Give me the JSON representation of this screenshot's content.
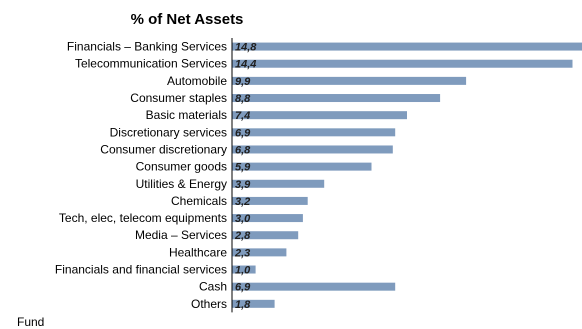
{
  "chart_data": {
    "type": "bar",
    "orientation": "horizontal",
    "title": "% of Net Assets",
    "categories": [
      "Financials – Banking Services",
      "Telecommunication Services",
      "Automobile",
      "Consumer staples",
      "Basic materials",
      "Discretionary services",
      "Consumer discretionary",
      "Consumer goods",
      "Utilities & Energy",
      "Chemicals",
      "Tech, elec, telecom equipments",
      "Media – Services",
      "Healthcare",
      "Financials and financial services",
      "Cash",
      "Others"
    ],
    "values": [
      14.8,
      14.4,
      9.9,
      8.8,
      7.4,
      6.9,
      6.8,
      5.9,
      3.9,
      3.2,
      3.0,
      2.8,
      2.3,
      1.0,
      6.9,
      1.8
    ],
    "value_labels": [
      "14,8",
      "14,4",
      "9,9",
      "8,8",
      "7,4",
      "6,9",
      "6,8",
      "5,9",
      "3,9",
      "3,2",
      "3,0",
      "2,8",
      "2,3",
      "1,0",
      "6,9",
      "1,8"
    ],
    "series": [
      {
        "values": [
          14.8,
          14.4,
          9.9,
          8.8,
          7.4,
          6.9,
          6.8,
          5.9,
          3.9,
          3.2,
          3.0,
          2.8,
          2.3,
          1.0,
          6.9,
          1.8
        ],
        "color": "#7f9bbd"
      }
    ],
    "xlim": [
      0,
      14.8
    ],
    "grid": false,
    "legend": "none"
  },
  "footer": {
    "label": "Fund"
  }
}
